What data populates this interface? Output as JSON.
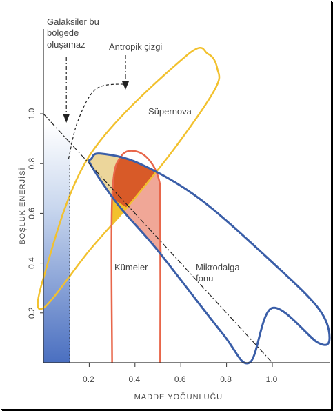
{
  "chart_data": {
    "type": "area",
    "xlabel": "MADDE YOĞUNLUĞU",
    "ylabel": "BOŞLUK ENERJİSİ",
    "xlim": [
      0,
      1.25
    ],
    "ylim": [
      0,
      1.3
    ],
    "x_ticks": [
      "0.2",
      "0.4",
      "0.6",
      "0.8",
      "1.0"
    ],
    "x_tick_values": [
      0.2,
      0.4,
      0.6,
      0.8,
      1.0
    ],
    "y_ticks": [
      "0.2",
      "0.4",
      "0.6",
      "0.8",
      "1.0"
    ],
    "y_tick_values": [
      0.2,
      0.4,
      0.6,
      0.8,
      1.0
    ],
    "colors": {
      "supernova": "#f2c12e",
      "cmb": "#3a5ea8",
      "clusters": "#e8664a",
      "cluster_fill": "#ee9d8c",
      "overlap": "#d85a28",
      "no_galaxies": "#4a6fc0",
      "axes": "#333333"
    },
    "regions": [
      {
        "name": "Süpernova",
        "color": "#f2c12e",
        "points": [
          [
            0.2,
            0.83
          ],
          [
            0.62,
            1.23
          ],
          [
            0.72,
            1.24
          ],
          [
            0.76,
            1.18
          ],
          [
            0.75,
            1.1
          ],
          [
            0.58,
            0.87
          ],
          [
            0.38,
            0.64
          ],
          [
            0.2,
            0.45
          ],
          [
            0.0,
            0.22
          ],
          [
            0.0,
            0.34
          ]
        ]
      },
      {
        "name": "Mikrodalga fonu",
        "color": "#3a5ea8",
        "points": [
          [
            0.21,
            0.82
          ],
          [
            0.25,
            0.84
          ],
          [
            0.42,
            0.8
          ],
          [
            0.68,
            0.66
          ],
          [
            0.98,
            0.42
          ],
          [
            1.2,
            0.22
          ],
          [
            1.25,
            0.1
          ],
          [
            1.2,
            0.08
          ],
          [
            1.0,
            0.22
          ],
          [
            0.9,
            0.0
          ],
          [
            0.78,
            0.12
          ],
          [
            0.5,
            0.45
          ],
          [
            0.33,
            0.63
          ],
          [
            0.21,
            0.79
          ]
        ]
      },
      {
        "name": "Kümeler",
        "color": "#e8664a",
        "points": [
          [
            0.3,
            0.0
          ],
          [
            0.3,
            0.66
          ],
          [
            0.34,
            0.83
          ],
          [
            0.43,
            0.84
          ],
          [
            0.5,
            0.75
          ],
          [
            0.51,
            0.6
          ],
          [
            0.51,
            0.0
          ]
        ]
      }
    ],
    "lines": [
      {
        "name": "flat-universe",
        "style": "dash-dot",
        "points": [
          [
            0.0,
            1.0
          ],
          [
            1.0,
            0.0
          ]
        ]
      },
      {
        "name": "no-galaxy-boundary",
        "style": "dotted",
        "points": [
          [
            0.115,
            0.0
          ],
          [
            0.115,
            0.8
          ]
        ]
      },
      {
        "name": "Antropik çizgi",
        "style": "dashed",
        "points": [
          [
            0.11,
            0.82
          ],
          [
            0.15,
            0.97
          ],
          [
            0.23,
            1.1
          ],
          [
            0.36,
            1.12
          ]
        ]
      }
    ],
    "annotations": {
      "supernova_label": "Süpernova",
      "clusters_label": "Kümeler",
      "cmb_label_1": "Mikrodalga",
      "cmb_label_2": "fonu",
      "anthropic_label": "Antropik çizgi",
      "galaxies_label_1": "Galaksiler bu",
      "galaxies_label_2": "bölgede",
      "galaxies_label_3": "oluşamaz"
    }
  }
}
